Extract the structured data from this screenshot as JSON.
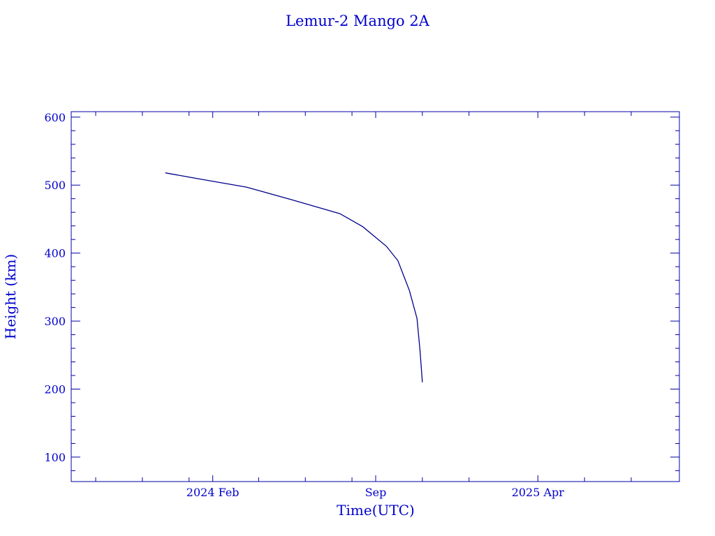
{
  "chart_data": {
    "type": "line",
    "title": "Lemur-2 Mango 2A",
    "xlabel": "Time(UTC)",
    "ylabel": "Height (km)",
    "x_type": "date",
    "xlim": [
      "2023-07-31",
      "2025-10-03"
    ],
    "ylim": [
      64,
      608
    ],
    "grid": false,
    "x_major_ticks": [
      {
        "date": "2024-02-01",
        "label": "2024 Feb"
      },
      {
        "date": "2024-09-01",
        "label": "Sep"
      },
      {
        "date": "2025-04-01",
        "label": "2025 Apr"
      }
    ],
    "x_minor_ticks": [
      "2023-09-01",
      "2023-11-01",
      "2024-01-01",
      "2024-04-01",
      "2024-06-01",
      "2024-08-01",
      "2024-11-01",
      "2025-01-01",
      "2025-06-01",
      "2025-08-01"
    ],
    "y_major_ticks": [
      100,
      200,
      300,
      400,
      500,
      600
    ],
    "y_minor_step": 20,
    "colors": {
      "text": "#0000cc",
      "axis": "#0000aa",
      "line": "#00008b"
    },
    "series": [
      {
        "x": [
          "2023-12-01",
          "2024-01-15",
          "2024-03-16",
          "2024-05-16",
          "2024-07-16",
          "2024-08-15",
          "2024-09-15",
          "2024-09-30",
          "2024-10-15",
          "2024-10-25",
          "2024-10-29",
          "2024-11-01"
        ],
        "y": [
          518,
          509,
          497,
          478,
          458,
          439,
          410,
          389,
          345,
          304,
          256,
          210
        ]
      }
    ]
  }
}
